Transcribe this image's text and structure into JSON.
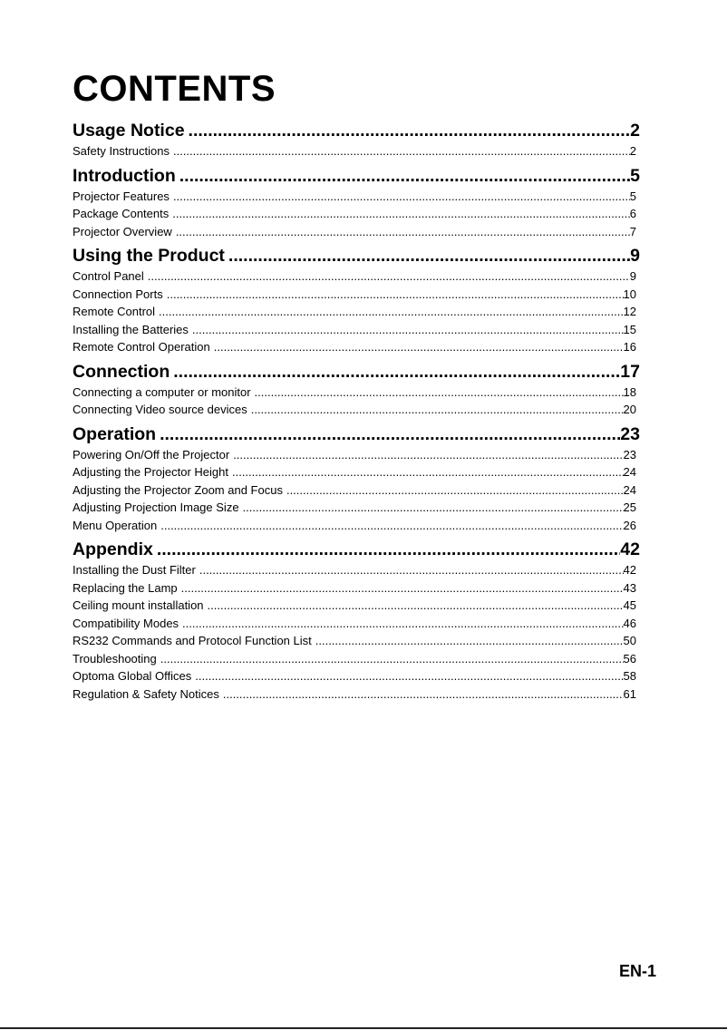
{
  "title": "CONTENTS",
  "sections": [
    {
      "label": "Usage Notice",
      "page": "2",
      "entries": [
        {
          "label": "Safety Instructions",
          "page": "2"
        }
      ]
    },
    {
      "label": "Introduction",
      "page": "5",
      "entries": [
        {
          "label": "Projector Features",
          "page": "5"
        },
        {
          "label": "Package Contents",
          "page": "6"
        },
        {
          "label": "Projector Overview",
          "page": "7"
        }
      ]
    },
    {
      "label": "Using the Product",
      "page": "9",
      "entries": [
        {
          "label": "Control Panel",
          "page": "9"
        },
        {
          "label": "Connection Ports",
          "page": "10"
        },
        {
          "label": "Remote Control",
          "page": "12"
        },
        {
          "label": "Installing the Batteries",
          "page": "15"
        },
        {
          "label": "Remote Control Operation",
          "page": "16"
        }
      ]
    },
    {
      "label": "Connection",
      "page": "17",
      "entries": [
        {
          "label": "Connecting a computer or monitor",
          "page": "18"
        },
        {
          "label": "Connecting Video source devices",
          "page": "20"
        }
      ]
    },
    {
      "label": "Operation",
      "page": "23",
      "entries": [
        {
          "label": "Powering On/Off the Projector",
          "page": "23"
        },
        {
          "label": "Adjusting the Projector Height",
          "page": "24"
        },
        {
          "label": "Adjusting the Projector Zoom and Focus",
          "page": "24"
        },
        {
          "label": "Adjusting Projection Image Size",
          "page": "25"
        },
        {
          "label": "Menu Operation",
          "page": "26"
        }
      ]
    },
    {
      "label": "Appendix",
      "page": "42",
      "entries": [
        {
          "label": "Installing the Dust Filter",
          "page": "42"
        },
        {
          "label": "Replacing the Lamp",
          "page": "43"
        },
        {
          "label": "Ceiling mount installation",
          "page": "45"
        },
        {
          "label": "Compatibility Modes",
          "page": "46"
        },
        {
          "label": "RS232 Commands and Protocol Function List",
          "page": "50"
        },
        {
          "label": "Troubleshooting",
          "page": "56"
        },
        {
          "label": "Optoma Global Offices",
          "page": "58"
        },
        {
          "label": "Regulation & Safety Notices",
          "page": "61"
        }
      ]
    }
  ],
  "footer": {
    "page_number": "EN-1"
  }
}
